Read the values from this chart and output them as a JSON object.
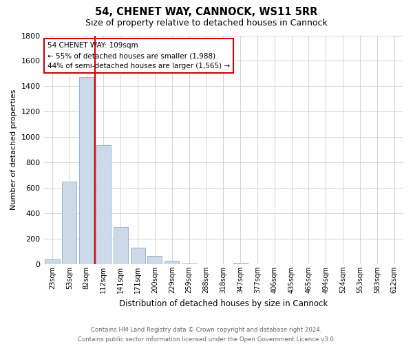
{
  "title": "54, CHENET WAY, CANNOCK, WS11 5RR",
  "subtitle": "Size of property relative to detached houses in Cannock",
  "xlabel": "Distribution of detached houses by size in Cannock",
  "ylabel": "Number of detached properties",
  "bar_labels": [
    "23sqm",
    "53sqm",
    "82sqm",
    "112sqm",
    "141sqm",
    "171sqm",
    "200sqm",
    "229sqm",
    "259sqm",
    "288sqm",
    "318sqm",
    "347sqm",
    "377sqm",
    "406sqm",
    "435sqm",
    "465sqm",
    "494sqm",
    "524sqm",
    "553sqm",
    "583sqm",
    "612sqm"
  ],
  "bar_values": [
    40,
    650,
    1470,
    935,
    290,
    130,
    65,
    25,
    5,
    0,
    0,
    10,
    0,
    0,
    0,
    0,
    0,
    0,
    0,
    0,
    0
  ],
  "bar_color": "#ccd9e8",
  "bar_edge_color": "#9ab4cc",
  "marker_color": "#cc0000",
  "ylim": [
    0,
    1800
  ],
  "yticks": [
    0,
    200,
    400,
    600,
    800,
    1000,
    1200,
    1400,
    1600,
    1800
  ],
  "annotation_title": "54 CHENET WAY: 109sqm",
  "annotation_line1": "← 55% of detached houses are smaller (1,988)",
  "annotation_line2": "44% of semi-detached houses are larger (1,565) →",
  "annotation_box_color": "#ffffff",
  "annotation_box_edge": "#cc0000",
  "footer_line1": "Contains HM Land Registry data © Crown copyright and database right 2024.",
  "footer_line2": "Contains public sector information licensed under the Open Government Licence v3.0.",
  "background_color": "#ffffff",
  "grid_color": "#cccccc"
}
